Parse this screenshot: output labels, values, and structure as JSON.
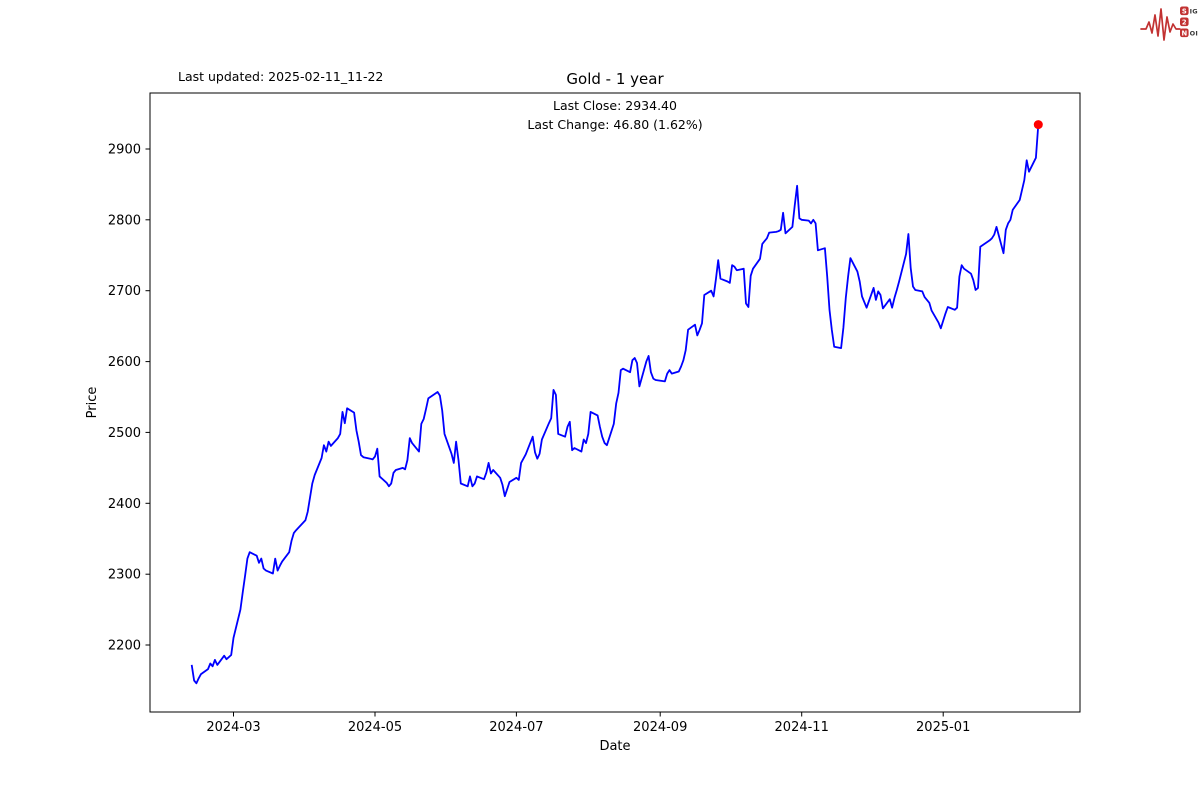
{
  "header": {
    "last_updated": "Last updated: 2025-02-11_11-22"
  },
  "logo": {
    "s": "S",
    "two": "2",
    "n": "N",
    "line1_rest": "IGNAL",
    "line3_rest": "OISE",
    "accent_color": "#c23232"
  },
  "chart_data": {
    "type": "line",
    "title": "Gold - 1 year",
    "annotations": {
      "last_close": "Last Close: 2934.40",
      "last_change": "Last Change: 46.80 (1.62%)"
    },
    "last_close_value": 2934.4,
    "last_change_value": 46.8,
    "last_change_pct": "1.62%",
    "xlabel": "Date",
    "ylabel": "Price",
    "grid": false,
    "legend": "none",
    "line_color": "#0000ff",
    "marker_color": "#ff0000",
    "axis_color": "#000000",
    "xlim": [
      "2024-01-25",
      "2025-03-01"
    ],
    "ylim": [
      2105.5,
      2979.0
    ],
    "y_ticks": [
      2200,
      2300,
      2400,
      2500,
      2600,
      2700,
      2800,
      2900
    ],
    "x_ticks": [
      {
        "date": "2024-03-01",
        "label": "2024-03"
      },
      {
        "date": "2024-05-01",
        "label": "2024-05"
      },
      {
        "date": "2024-07-01",
        "label": "2024-07"
      },
      {
        "date": "2024-09-01",
        "label": "2024-09"
      },
      {
        "date": "2024-11-01",
        "label": "2024-11"
      },
      {
        "date": "2025-01-01",
        "label": "2025-01"
      }
    ],
    "series": [
      {
        "name": "Gold",
        "points": [
          [
            "2024-02-12",
            2172
          ],
          [
            "2024-02-13",
            2150
          ],
          [
            "2024-02-14",
            2146
          ],
          [
            "2024-02-15",
            2153
          ],
          [
            "2024-02-16",
            2159
          ],
          [
            "2024-02-19",
            2166
          ],
          [
            "2024-02-20",
            2174
          ],
          [
            "2024-02-21",
            2170
          ],
          [
            "2024-02-22",
            2179
          ],
          [
            "2024-02-23",
            2172
          ],
          [
            "2024-02-26",
            2185
          ],
          [
            "2024-02-27",
            2180
          ],
          [
            "2024-02-28",
            2183
          ],
          [
            "2024-02-29",
            2186
          ],
          [
            "2024-03-01",
            2210
          ],
          [
            "2024-03-04",
            2250
          ],
          [
            "2024-03-05",
            2275
          ],
          [
            "2024-03-06",
            2298
          ],
          [
            "2024-03-07",
            2322
          ],
          [
            "2024-03-08",
            2331
          ],
          [
            "2024-03-11",
            2326
          ],
          [
            "2024-03-12",
            2316
          ],
          [
            "2024-03-13",
            2322
          ],
          [
            "2024-03-14",
            2308
          ],
          [
            "2024-03-15",
            2305
          ],
          [
            "2024-03-18",
            2301
          ],
          [
            "2024-03-19",
            2322
          ],
          [
            "2024-03-20",
            2305
          ],
          [
            "2024-03-21",
            2312
          ],
          [
            "2024-03-22",
            2318
          ],
          [
            "2024-03-25",
            2331
          ],
          [
            "2024-03-26",
            2347
          ],
          [
            "2024-03-27",
            2358
          ],
          [
            "2024-03-28",
            2362
          ],
          [
            "2024-04-01",
            2376
          ],
          [
            "2024-04-02",
            2388
          ],
          [
            "2024-04-03",
            2408
          ],
          [
            "2024-04-04",
            2428
          ],
          [
            "2024-04-05",
            2440
          ],
          [
            "2024-04-08",
            2464
          ],
          [
            "2024-04-09",
            2482
          ],
          [
            "2024-04-10",
            2473
          ],
          [
            "2024-04-11",
            2487
          ],
          [
            "2024-04-12",
            2481
          ],
          [
            "2024-04-15",
            2492
          ],
          [
            "2024-04-16",
            2498
          ],
          [
            "2024-04-17",
            2529
          ],
          [
            "2024-04-18",
            2513
          ],
          [
            "2024-04-19",
            2534
          ],
          [
            "2024-04-22",
            2528
          ],
          [
            "2024-04-23",
            2503
          ],
          [
            "2024-04-24",
            2487
          ],
          [
            "2024-04-25",
            2468
          ],
          [
            "2024-04-26",
            2465
          ],
          [
            "2024-04-29",
            2463
          ],
          [
            "2024-04-30",
            2462
          ],
          [
            "2024-05-01",
            2466
          ],
          [
            "2024-05-02",
            2477
          ],
          [
            "2024-05-03",
            2438
          ],
          [
            "2024-05-06",
            2429
          ],
          [
            "2024-05-07",
            2424
          ],
          [
            "2024-05-08",
            2428
          ],
          [
            "2024-05-09",
            2443
          ],
          [
            "2024-05-10",
            2447
          ],
          [
            "2024-05-13",
            2450
          ],
          [
            "2024-05-14",
            2448
          ],
          [
            "2024-05-15",
            2461
          ],
          [
            "2024-05-16",
            2492
          ],
          [
            "2024-05-17",
            2485
          ],
          [
            "2024-05-20",
            2473
          ],
          [
            "2024-05-21",
            2512
          ],
          [
            "2024-05-22",
            2519
          ],
          [
            "2024-05-23",
            2533
          ],
          [
            "2024-05-24",
            2548
          ],
          [
            "2024-05-28",
            2557
          ],
          [
            "2024-05-29",
            2552
          ],
          [
            "2024-05-30",
            2531
          ],
          [
            "2024-05-31",
            2498
          ],
          [
            "2024-06-03",
            2470
          ],
          [
            "2024-06-04",
            2457
          ],
          [
            "2024-06-05",
            2487
          ],
          [
            "2024-06-06",
            2461
          ],
          [
            "2024-06-07",
            2428
          ],
          [
            "2024-06-10",
            2424
          ],
          [
            "2024-06-11",
            2438
          ],
          [
            "2024-06-12",
            2424
          ],
          [
            "2024-06-13",
            2428
          ],
          [
            "2024-06-14",
            2438
          ],
          [
            "2024-06-17",
            2434
          ],
          [
            "2024-06-18",
            2443
          ],
          [
            "2024-06-19",
            2457
          ],
          [
            "2024-06-20",
            2442
          ],
          [
            "2024-06-21",
            2447
          ],
          [
            "2024-06-24",
            2436
          ],
          [
            "2024-06-25",
            2426
          ],
          [
            "2024-06-26",
            2410
          ],
          [
            "2024-06-27",
            2420
          ],
          [
            "2024-06-28",
            2430
          ],
          [
            "2024-07-01",
            2436
          ],
          [
            "2024-07-02",
            2433
          ],
          [
            "2024-07-03",
            2457
          ],
          [
            "2024-07-05",
            2469
          ],
          [
            "2024-07-08",
            2494
          ],
          [
            "2024-07-09",
            2472
          ],
          [
            "2024-07-10",
            2463
          ],
          [
            "2024-07-11",
            2470
          ],
          [
            "2024-07-12",
            2490
          ],
          [
            "2024-07-15",
            2513
          ],
          [
            "2024-07-16",
            2520
          ],
          [
            "2024-07-17",
            2560
          ],
          [
            "2024-07-18",
            2553
          ],
          [
            "2024-07-19",
            2498
          ],
          [
            "2024-07-22",
            2494
          ],
          [
            "2024-07-23",
            2508
          ],
          [
            "2024-07-24",
            2515
          ],
          [
            "2024-07-25",
            2475
          ],
          [
            "2024-07-26",
            2478
          ],
          [
            "2024-07-29",
            2473
          ],
          [
            "2024-07-30",
            2490
          ],
          [
            "2024-07-31",
            2485
          ],
          [
            "2024-08-01",
            2498
          ],
          [
            "2024-08-02",
            2529
          ],
          [
            "2024-08-05",
            2524
          ],
          [
            "2024-08-06",
            2508
          ],
          [
            "2024-08-07",
            2494
          ],
          [
            "2024-08-08",
            2485
          ],
          [
            "2024-08-09",
            2482
          ],
          [
            "2024-08-12",
            2512
          ],
          [
            "2024-08-13",
            2541
          ],
          [
            "2024-08-14",
            2556
          ],
          [
            "2024-08-15",
            2588
          ],
          [
            "2024-08-16",
            2590
          ],
          [
            "2024-08-19",
            2585
          ],
          [
            "2024-08-20",
            2602
          ],
          [
            "2024-08-21",
            2605
          ],
          [
            "2024-08-22",
            2598
          ],
          [
            "2024-08-23",
            2565
          ],
          [
            "2024-08-26",
            2600
          ],
          [
            "2024-08-27",
            2608
          ],
          [
            "2024-08-28",
            2585
          ],
          [
            "2024-08-29",
            2576
          ],
          [
            "2024-08-30",
            2574
          ],
          [
            "2024-09-03",
            2572
          ],
          [
            "2024-09-04",
            2583
          ],
          [
            "2024-09-05",
            2588
          ],
          [
            "2024-09-06",
            2583
          ],
          [
            "2024-09-09",
            2586
          ],
          [
            "2024-09-10",
            2593
          ],
          [
            "2024-09-11",
            2602
          ],
          [
            "2024-09-12",
            2616
          ],
          [
            "2024-09-13",
            2645
          ],
          [
            "2024-09-16",
            2652
          ],
          [
            "2024-09-17",
            2637
          ],
          [
            "2024-09-18",
            2645
          ],
          [
            "2024-09-19",
            2654
          ],
          [
            "2024-09-20",
            2694
          ],
          [
            "2024-09-23",
            2700
          ],
          [
            "2024-09-24",
            2692
          ],
          [
            "2024-09-25",
            2716
          ],
          [
            "2024-09-26",
            2743
          ],
          [
            "2024-09-27",
            2717
          ],
          [
            "2024-09-30",
            2713
          ],
          [
            "2024-10-01",
            2711
          ],
          [
            "2024-10-02",
            2736
          ],
          [
            "2024-10-03",
            2734
          ],
          [
            "2024-10-04",
            2729
          ],
          [
            "2024-10-07",
            2731
          ],
          [
            "2024-10-08",
            2682
          ],
          [
            "2024-10-09",
            2677
          ],
          [
            "2024-10-10",
            2721
          ],
          [
            "2024-10-11",
            2731
          ],
          [
            "2024-10-14",
            2745
          ],
          [
            "2024-10-15",
            2766
          ],
          [
            "2024-10-16",
            2770
          ],
          [
            "2024-10-17",
            2774
          ],
          [
            "2024-10-18",
            2782
          ],
          [
            "2024-10-21",
            2783
          ],
          [
            "2024-10-22",
            2784
          ],
          [
            "2024-10-23",
            2786
          ],
          [
            "2024-10-24",
            2810
          ],
          [
            "2024-10-25",
            2781
          ],
          [
            "2024-10-28",
            2790
          ],
          [
            "2024-10-29",
            2820
          ],
          [
            "2024-10-30",
            2848
          ],
          [
            "2024-10-31",
            2802
          ],
          [
            "2024-11-01",
            2800
          ],
          [
            "2024-11-04",
            2799
          ],
          [
            "2024-11-05",
            2795
          ],
          [
            "2024-11-06",
            2800
          ],
          [
            "2024-11-07",
            2795
          ],
          [
            "2024-11-08",
            2757
          ],
          [
            "2024-11-11",
            2760
          ],
          [
            "2024-11-12",
            2720
          ],
          [
            "2024-11-13",
            2673
          ],
          [
            "2024-11-14",
            2645
          ],
          [
            "2024-11-15",
            2621
          ],
          [
            "2024-11-18",
            2619
          ],
          [
            "2024-11-19",
            2648
          ],
          [
            "2024-11-20",
            2690
          ],
          [
            "2024-11-21",
            2720
          ],
          [
            "2024-11-22",
            2746
          ],
          [
            "2024-11-25",
            2727
          ],
          [
            "2024-11-26",
            2713
          ],
          [
            "2024-11-27",
            2692
          ],
          [
            "2024-11-29",
            2676
          ],
          [
            "2024-12-02",
            2704
          ],
          [
            "2024-12-03",
            2687
          ],
          [
            "2024-12-04",
            2699
          ],
          [
            "2024-12-05",
            2694
          ],
          [
            "2024-12-06",
            2675
          ],
          [
            "2024-12-09",
            2688
          ],
          [
            "2024-12-10",
            2676
          ],
          [
            "2024-12-11",
            2690
          ],
          [
            "2024-12-12",
            2701
          ],
          [
            "2024-12-13",
            2713
          ],
          [
            "2024-12-16",
            2752
          ],
          [
            "2024-12-17",
            2780
          ],
          [
            "2024-12-18",
            2732
          ],
          [
            "2024-12-19",
            2706
          ],
          [
            "2024-12-20",
            2701
          ],
          [
            "2024-12-23",
            2699
          ],
          [
            "2024-12-24",
            2691
          ],
          [
            "2024-12-26",
            2683
          ],
          [
            "2024-12-27",
            2672
          ],
          [
            "2024-12-30",
            2655
          ],
          [
            "2024-12-31",
            2647
          ],
          [
            "2025-01-02",
            2668
          ],
          [
            "2025-01-03",
            2677
          ],
          [
            "2025-01-06",
            2673
          ],
          [
            "2025-01-07",
            2676
          ],
          [
            "2025-01-08",
            2720
          ],
          [
            "2025-01-09",
            2736
          ],
          [
            "2025-01-10",
            2731
          ],
          [
            "2025-01-13",
            2724
          ],
          [
            "2025-01-14",
            2715
          ],
          [
            "2025-01-15",
            2701
          ],
          [
            "2025-01-16",
            2704
          ],
          [
            "2025-01-17",
            2762
          ],
          [
            "2025-01-21",
            2771
          ],
          [
            "2025-01-22",
            2774
          ],
          [
            "2025-01-23",
            2779
          ],
          [
            "2025-01-24",
            2790
          ],
          [
            "2025-01-27",
            2753
          ],
          [
            "2025-01-28",
            2786
          ],
          [
            "2025-01-29",
            2795
          ],
          [
            "2025-01-30",
            2800
          ],
          [
            "2025-01-31",
            2814
          ],
          [
            "2025-02-03",
            2828
          ],
          [
            "2025-02-04",
            2842
          ],
          [
            "2025-02-05",
            2856
          ],
          [
            "2025-02-06",
            2884
          ],
          [
            "2025-02-07",
            2868
          ],
          [
            "2025-02-10",
            2887.6
          ],
          [
            "2025-02-11",
            2934.4
          ]
        ]
      }
    ]
  }
}
